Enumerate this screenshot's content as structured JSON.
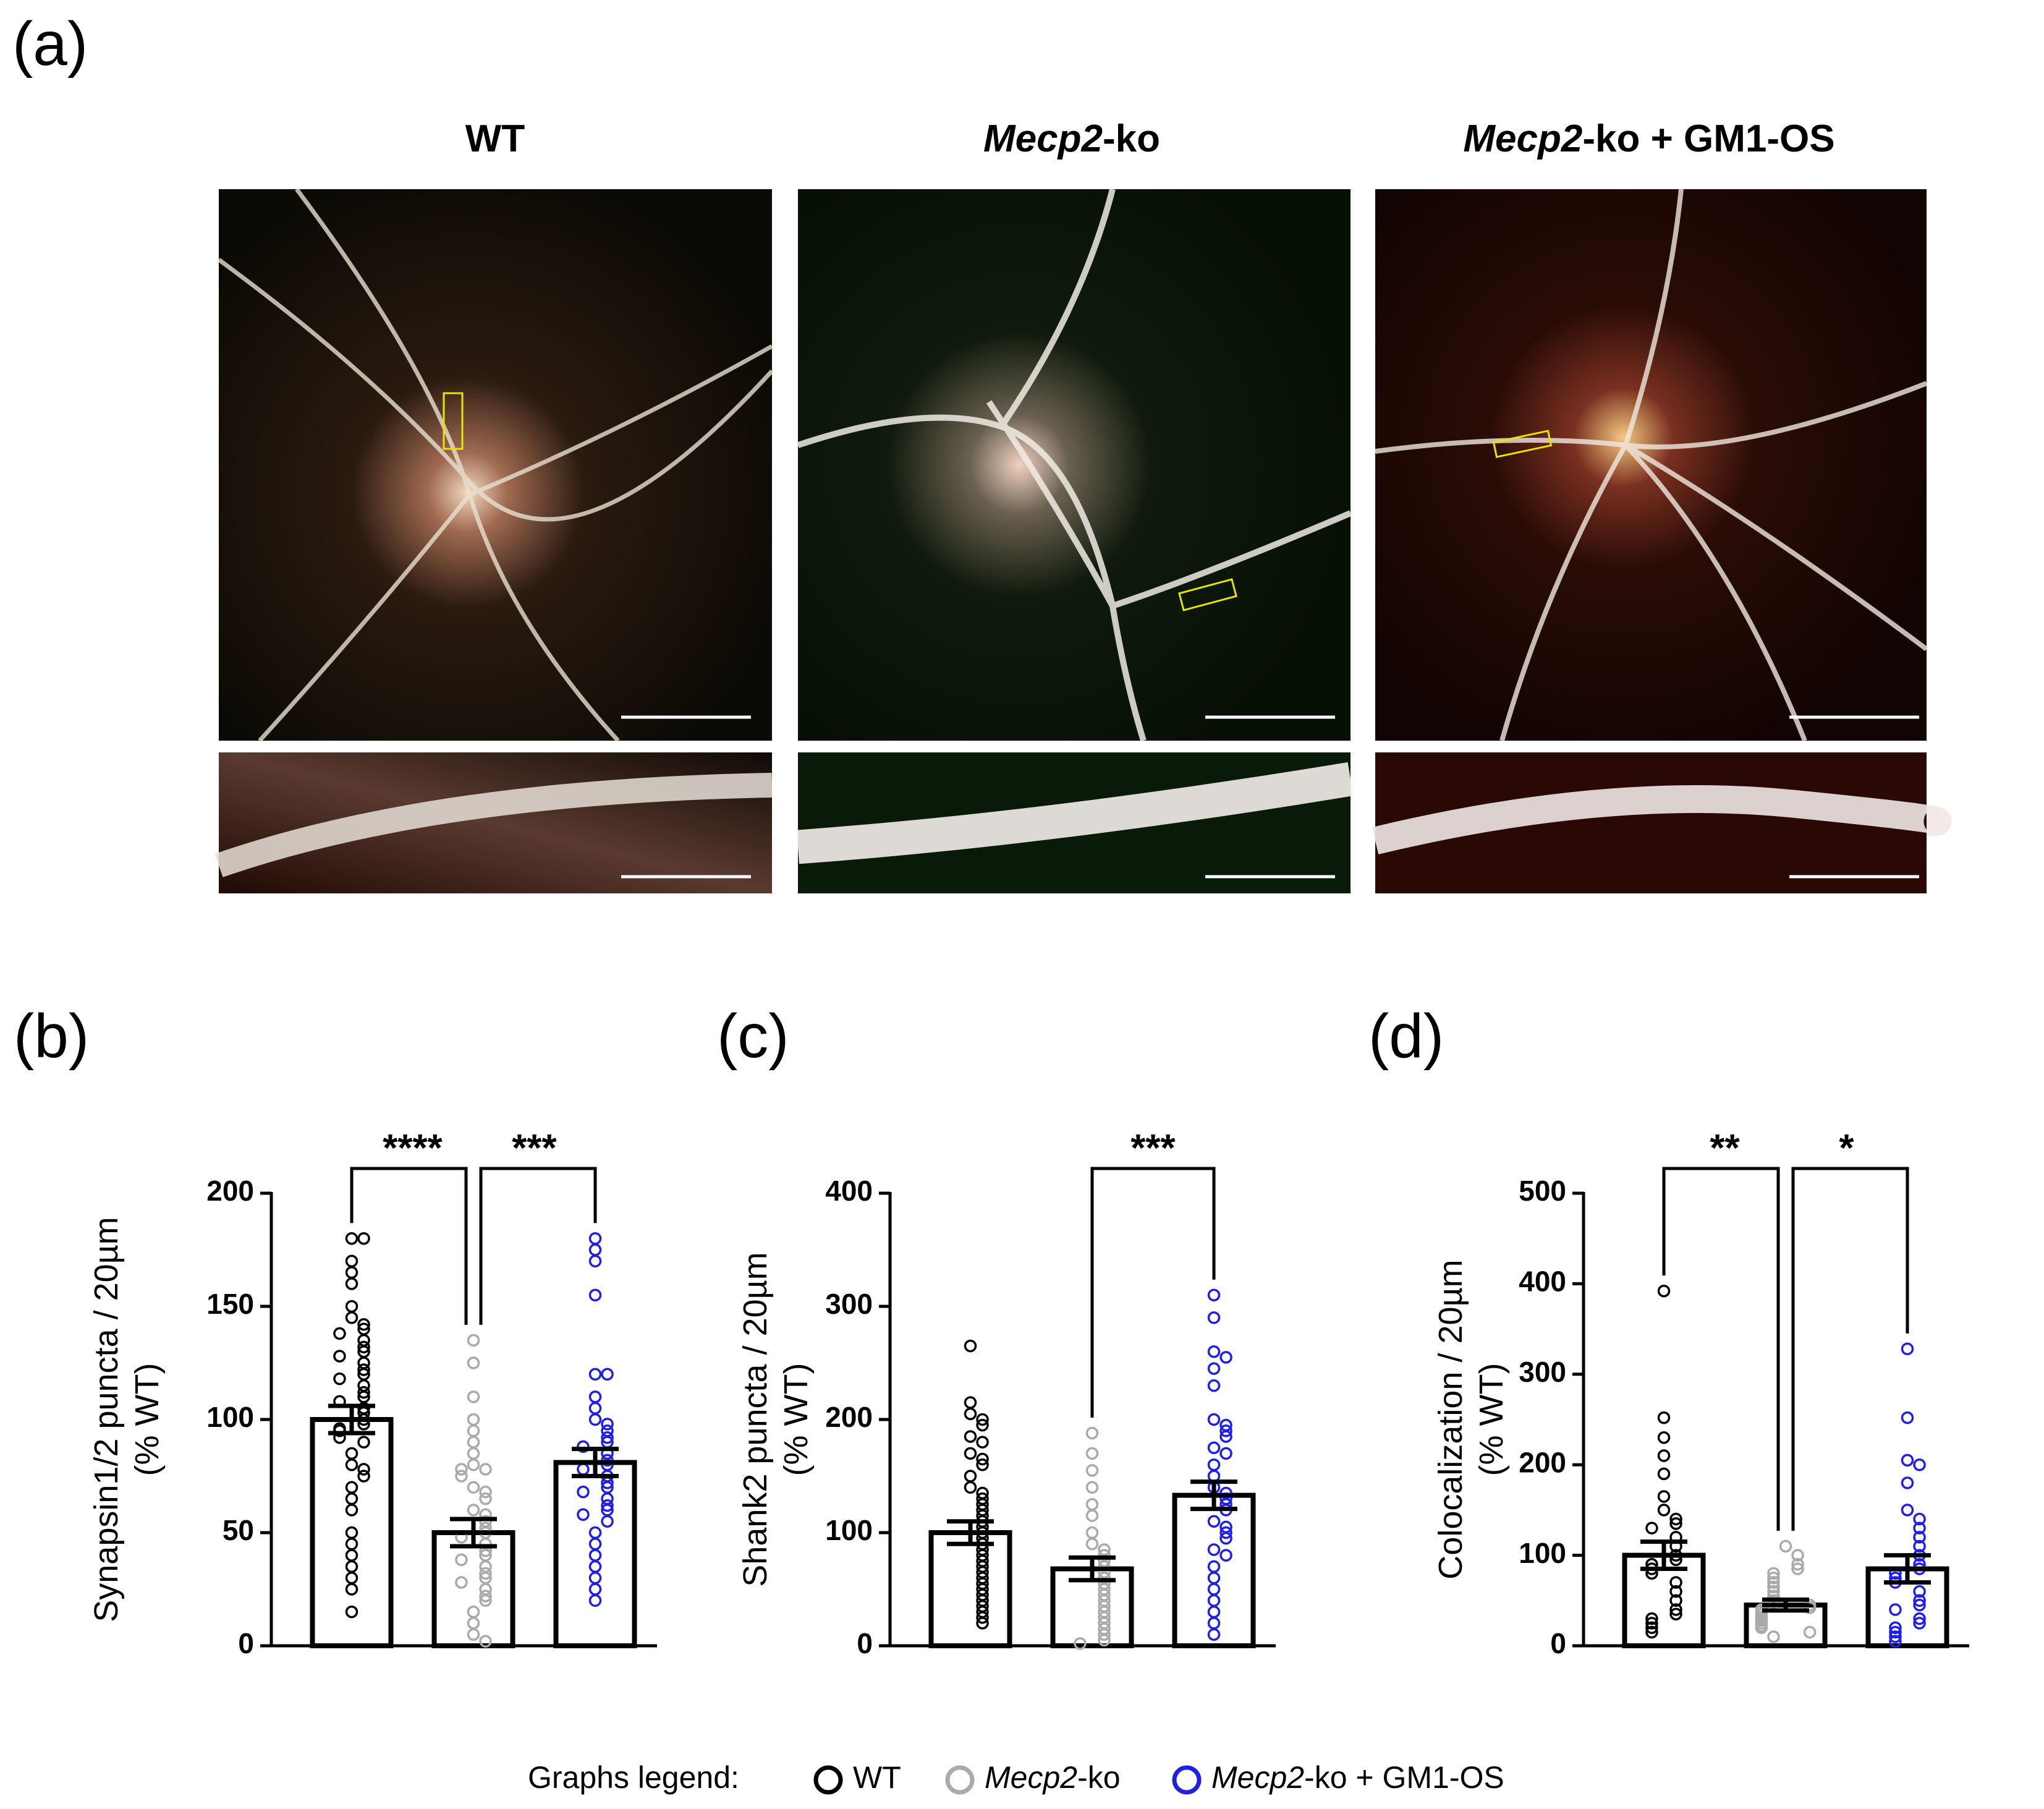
{
  "panel_a": {
    "label": "(a)",
    "columns": [
      [
        {
          "text": "WT",
          "italic": false
        }
      ],
      [
        {
          "text": "Mecp2",
          "italic": true
        },
        {
          "text": "-ko",
          "italic": false
        }
      ],
      [
        {
          "text": "Mecp2",
          "italic": true
        },
        {
          "text": "-ko + GM1-OS",
          "italic": false
        }
      ]
    ]
  },
  "legend": {
    "title": "Graphs legend:",
    "entries": [
      {
        "color": "#000000",
        "parts": [
          {
            "text": "WT",
            "italic": false
          }
        ]
      },
      {
        "color": "#aaaaaa",
        "parts": [
          {
            "text": "Mecp2",
            "italic": true
          },
          {
            "text": "-ko",
            "italic": false
          }
        ]
      },
      {
        "color": "#1f1fe6",
        "parts": [
          {
            "text": "Mecp2",
            "italic": true
          },
          {
            "text": "-ko + GM1-OS",
            "italic": false
          }
        ]
      }
    ]
  },
  "chart_data": [
    {
      "type": "bar",
      "label": "(b)",
      "ylabel": [
        "Synapsin1/2 puncta / 20µm",
        "(% WT)"
      ],
      "ylim": [
        0,
        200
      ],
      "yticks": [
        0,
        50,
        100,
        150,
        200
      ],
      "series": [
        {
          "color": "#000000",
          "mean": 100,
          "sem": 6,
          "points": [
            180,
            180,
            170,
            165,
            160,
            150,
            145,
            142,
            140,
            138,
            135,
            132,
            130,
            128,
            125,
            122,
            120,
            118,
            115,
            112,
            110,
            108,
            105,
            103,
            100,
            98,
            96,
            95,
            92,
            90,
            85,
            80,
            78,
            75,
            70,
            65,
            60,
            50,
            45,
            40,
            35,
            30,
            25,
            15
          ]
        },
        {
          "color": "#aaaaaa",
          "mean": 50,
          "sem": 6,
          "points": [
            135,
            125,
            110,
            100,
            95,
            90,
            85,
            80,
            78,
            78,
            75,
            70,
            68,
            65,
            60,
            58,
            55,
            52,
            50,
            48,
            45,
            42,
            40,
            38,
            35,
            32,
            30,
            28,
            25,
            22,
            20,
            15,
            10,
            5,
            2
          ]
        },
        {
          "color": "#1f1fe6",
          "mean": 81,
          "sem": 6,
          "points": [
            180,
            175,
            170,
            155,
            120,
            120,
            110,
            105,
            100,
            98,
            95,
            92,
            90,
            88,
            85,
            82,
            80,
            78,
            75,
            72,
            70,
            68,
            65,
            62,
            60,
            58,
            55,
            50,
            45,
            40,
            35,
            30,
            25,
            20
          ]
        }
      ],
      "significance": [
        {
          "groups": [
            0,
            1
          ],
          "label": "****"
        },
        {
          "groups": [
            1,
            2
          ],
          "label": "***"
        }
      ]
    },
    {
      "type": "bar",
      "label": "(c)",
      "ylabel": [
        "Shank2 puncta / 20µm",
        "(% WT)"
      ],
      "ylim": [
        0,
        400
      ],
      "yticks": [
        0,
        100,
        200,
        300,
        400
      ],
      "series": [
        {
          "color": "#000000",
          "mean": 100,
          "sem": 10,
          "points": [
            265,
            215,
            205,
            200,
            195,
            185,
            180,
            170,
            165,
            160,
            150,
            140,
            135,
            130,
            125,
            120,
            115,
            110,
            105,
            100,
            95,
            90,
            85,
            80,
            75,
            70,
            65,
            60,
            55,
            50,
            45,
            40,
            35,
            30,
            25,
            20
          ]
        },
        {
          "color": "#aaaaaa",
          "mean": 68,
          "sem": 10,
          "points": [
            188,
            170,
            155,
            140,
            125,
            115,
            100,
            90,
            85,
            80,
            75,
            70,
            65,
            60,
            55,
            50,
            45,
            40,
            35,
            30,
            25,
            20,
            15,
            10,
            5,
            2
          ]
        },
        {
          "color": "#1f1fe6",
          "mean": 133,
          "sem": 12,
          "points": [
            310,
            290,
            260,
            255,
            245,
            230,
            200,
            195,
            190,
            185,
            175,
            170,
            160,
            150,
            140,
            135,
            130,
            125,
            120,
            110,
            105,
            100,
            95,
            85,
            80,
            70,
            60,
            50,
            40,
            30,
            20,
            10
          ]
        }
      ],
      "significance": [
        {
          "groups": [
            1,
            2
          ],
          "label": "***"
        }
      ]
    },
    {
      "type": "bar",
      "label": "(d)",
      "ylabel": [
        "Colocalization / 20µm",
        "(% WT)"
      ],
      "ylim": [
        0,
        500
      ],
      "yticks": [
        0,
        100,
        200,
        300,
        400,
        500
      ],
      "series": [
        {
          "color": "#000000",
          "mean": 100,
          "sem": 15,
          "points": [
            392,
            252,
            230,
            210,
            190,
            165,
            150,
            140,
            135,
            130,
            120,
            110,
            100,
            95,
            90,
            85,
            80,
            70,
            60,
            50,
            40,
            35,
            30,
            25,
            20,
            15
          ]
        },
        {
          "color": "#aaaaaa",
          "mean": 45,
          "sem": 6,
          "points": [
            110,
            100,
            90,
            85,
            80,
            75,
            70,
            65,
            60,
            55,
            50,
            48,
            45,
            42,
            40,
            38,
            35,
            32,
            30,
            28,
            25,
            22,
            20,
            15,
            10
          ]
        },
        {
          "color": "#1f1fe6",
          "mean": 85,
          "sem": 15,
          "points": [
            328,
            252,
            205,
            200,
            180,
            150,
            140,
            130,
            120,
            110,
            100,
            90,
            85,
            80,
            75,
            70,
            60,
            50,
            45,
            40,
            30,
            25,
            20,
            15,
            10,
            5
          ]
        }
      ],
      "significance": [
        {
          "groups": [
            0,
            1
          ],
          "label": "**"
        },
        {
          "groups": [
            1,
            2
          ],
          "label": "*"
        }
      ]
    }
  ]
}
